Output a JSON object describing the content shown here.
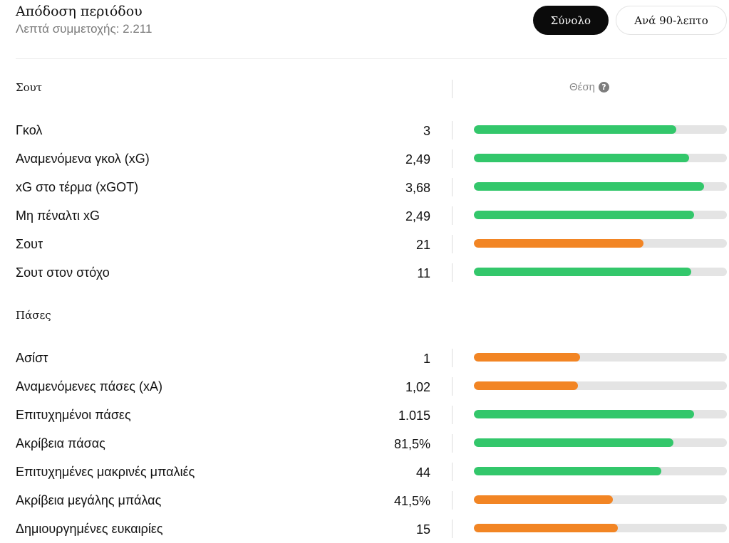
{
  "header": {
    "title": "Απόδοση περιόδου",
    "subtitle": "Λεπτά συμμετοχής: 2.211"
  },
  "toggle": {
    "total_label": "Σύνολο",
    "per90_label": "Ανά 90-λεπτο",
    "selected": "total"
  },
  "columns": {
    "position_header": "Θέση"
  },
  "colors": {
    "good": "#33c76b",
    "average": "#f28524",
    "track": "#e4e4e4"
  },
  "sections": [
    {
      "title": "Σουτ",
      "rows": [
        {
          "label": "Γκολ",
          "value": "3",
          "level": "good",
          "fill_pct": 80
        },
        {
          "label": "Αναμενόμενα γκολ (xG)",
          "value": "2,49",
          "level": "good",
          "fill_pct": 85
        },
        {
          "label": "xG στο τέρμα (xGOT)",
          "value": "3,68",
          "level": "good",
          "fill_pct": 91
        },
        {
          "label": "Μη πέναλτι xG",
          "value": "2,49",
          "level": "good",
          "fill_pct": 87
        },
        {
          "label": "Σουτ",
          "value": "21",
          "level": "average",
          "fill_pct": 67
        },
        {
          "label": "Σουτ στον στόχο",
          "value": "11",
          "level": "good",
          "fill_pct": 86
        }
      ]
    },
    {
      "title": "Πάσες",
      "rows": [
        {
          "label": "Ασίστ",
          "value": "1",
          "level": "average",
          "fill_pct": 42
        },
        {
          "label": "Αναμενόμενες πάσες (xA)",
          "value": "1,02",
          "level": "average",
          "fill_pct": 41
        },
        {
          "label": "Επιτυχημένοι πάσες",
          "value": "1.015",
          "level": "good",
          "fill_pct": 87
        },
        {
          "label": "Ακρίβεια πάσας",
          "value": "81,5%",
          "level": "good",
          "fill_pct": 79
        },
        {
          "label": "Επιτυχημένες μακρινές μπαλιές",
          "value": "44",
          "level": "good",
          "fill_pct": 74
        },
        {
          "label": "Ακρίβεια μεγάλης μπάλας",
          "value": "41,5%",
          "level": "average",
          "fill_pct": 55
        },
        {
          "label": "Δημιουργημένες ευκαιρίες",
          "value": "15",
          "level": "average",
          "fill_pct": 57
        }
      ]
    }
  ]
}
